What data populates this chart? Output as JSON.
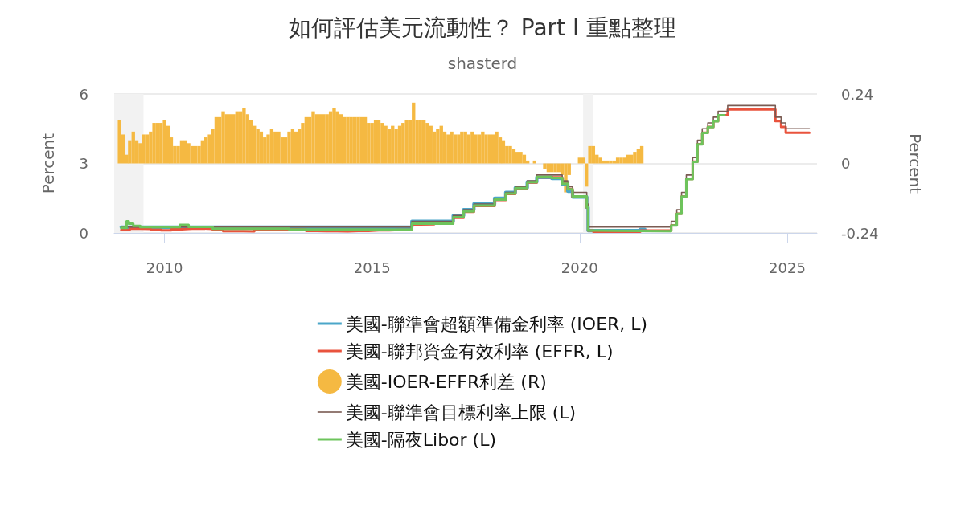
{
  "chart_data": {
    "type": "step",
    "title": "如何評估美元流動性？ Part I 重點整理",
    "subtitle": "shasterd",
    "ylabel": "Percent",
    "y2label": "Percent",
    "xlim": [
      "2008-10-15",
      "2025-09-20"
    ],
    "xticks": [
      "2010",
      "2015",
      "2020",
      "2025"
    ],
    "ylim": [
      0,
      6
    ],
    "yticks": [
      0,
      3,
      6
    ],
    "y2lim": [
      -0.24,
      0.24
    ],
    "y2ticks": [
      -0.24,
      0,
      0.24
    ],
    "grid": "y",
    "legend": "bottom",
    "bands": [
      {
        "axis": "x",
        "from": "2008-10-15",
        "to": "2009-06-30",
        "color": "#f2f2f2"
      },
      {
        "axis": "x",
        "from": "2020-02-01",
        "to": "2020-04-30",
        "color": "#f2f2f2"
      }
    ],
    "series": [
      {
        "name": "美國-聯準會超額準備金利率 (IOER, L)",
        "color": "#4ba6c9",
        "x": [
          "2008-12-16",
          "2015-12-17",
          "2016-12-15",
          "2017-03-16",
          "2017-06-15",
          "2017-12-14",
          "2018-03-22",
          "2018-06-14",
          "2018-09-27",
          "2018-12-20",
          "2019-05-02",
          "2019-08-01",
          "2019-09-19",
          "2019-10-31",
          "2020-03-04",
          "2020-03-16",
          "2021-06-17",
          "2021-07-28"
        ],
        "values": [
          0.25,
          0.5,
          0.75,
          1,
          1.25,
          1.5,
          1.75,
          1.95,
          2.2,
          2.4,
          2.35,
          2.1,
          1.8,
          1.55,
          1.1,
          0.1,
          0.15,
          0.15
        ]
      },
      {
        "name": "美國-聯邦資金有效利率 (EFFR, L)",
        "color": "#e9533d",
        "x": [
          "2008-12-16",
          "2009-03",
          "2009-06",
          "2009-09",
          "2009-12",
          "2010-03",
          "2010-06",
          "2010-09",
          "2010-12",
          "2011-03",
          "2011-06",
          "2011-09",
          "2011-12",
          "2012-03",
          "2012-06",
          "2012-09",
          "2012-12",
          "2013-03",
          "2013-06",
          "2013-09",
          "2013-12",
          "2014-03",
          "2014-06",
          "2014-09",
          "2014-12",
          "2015-03",
          "2015-06",
          "2015-09",
          "2015-12-17",
          "2016-03",
          "2016-07",
          "2016-12-15",
          "2017-03-16",
          "2017-06-15",
          "2017-12-14",
          "2018-03-22",
          "2018-06-14",
          "2018-09-27",
          "2018-12-20",
          "2019-08-01",
          "2019-09-19",
          "2019-10-31",
          "2020-03-04",
          "2020-03-16",
          "2020-05",
          "2021-06-17",
          "2022-03-17",
          "2022-05-05",
          "2022-06-16",
          "2022-07-28",
          "2022-09-22",
          "2022-11-03",
          "2022-12-15",
          "2023-02-02",
          "2023-03-23",
          "2023-05-04",
          "2023-07-27",
          "2024-09-19",
          "2024-11-08",
          "2024-12-19",
          "2025-07-15"
        ],
        "values": [
          0.13,
          0.18,
          0.17,
          0.14,
          0.11,
          0.16,
          0.18,
          0.19,
          0.17,
          0.13,
          0.08,
          0.08,
          0.07,
          0.12,
          0.16,
          0.14,
          0.16,
          0.14,
          0.09,
          0.08,
          0.08,
          0.07,
          0.09,
          0.09,
          0.11,
          0.11,
          0.13,
          0.13,
          0.36,
          0.37,
          0.4,
          0.65,
          0.91,
          1.16,
          1.42,
          1.68,
          1.91,
          2.18,
          2.4,
          2.13,
          1.9,
          1.55,
          1.1,
          0.1,
          0.05,
          0.1,
          0.33,
          0.83,
          1.58,
          2.33,
          3.08,
          3.83,
          4.33,
          4.58,
          4.83,
          5.08,
          5.33,
          4.83,
          4.58,
          4.33,
          4.33
        ]
      },
      {
        "name": "美國-IOER-EFFR利差 (R)",
        "color": "#f5b942",
        "type": "bar",
        "axis": "y2",
        "x": [
          "2008-12",
          "2009-01",
          "2009-02",
          "2009-03",
          "2009-04",
          "2009-05",
          "2009-06",
          "2009-07",
          "2009-08",
          "2009-09",
          "2009-10",
          "2009-11",
          "2009-12",
          "2010-01",
          "2010-02",
          "2010-03",
          "2010-04",
          "2010-05",
          "2010-06",
          "2010-07",
          "2010-08",
          "2010-09",
          "2010-10",
          "2010-11",
          "2010-12",
          "2011-01",
          "2011-02",
          "2011-03",
          "2011-04",
          "2011-05",
          "2011-06",
          "2011-07",
          "2011-08",
          "2011-09",
          "2011-10",
          "2011-11",
          "2011-12",
          "2012-01",
          "2012-02",
          "2012-03",
          "2012-04",
          "2012-05",
          "2012-06",
          "2012-07",
          "2012-08",
          "2012-09",
          "2012-10",
          "2012-11",
          "2012-12",
          "2013-01",
          "2013-02",
          "2013-03",
          "2013-04",
          "2013-05",
          "2013-06",
          "2013-07",
          "2013-08",
          "2013-09",
          "2013-10",
          "2013-11",
          "2013-12",
          "2014-01",
          "2014-02",
          "2014-03",
          "2014-04",
          "2014-05",
          "2014-06",
          "2014-07",
          "2014-08",
          "2014-09",
          "2014-10",
          "2014-11",
          "2014-12",
          "2015-01",
          "2015-02",
          "2015-03",
          "2015-04",
          "2015-05",
          "2015-06",
          "2015-07",
          "2015-08",
          "2015-09",
          "2015-10",
          "2015-11",
          "2015-12",
          "2016-01",
          "2016-02",
          "2016-03",
          "2016-04",
          "2016-05",
          "2016-06",
          "2016-07",
          "2016-08",
          "2016-09",
          "2016-10",
          "2016-11",
          "2016-12",
          "2017-01",
          "2017-02",
          "2017-03",
          "2017-04",
          "2017-05",
          "2017-06",
          "2017-07",
          "2017-08",
          "2017-09",
          "2017-10",
          "2017-11",
          "2017-12",
          "2018-01",
          "2018-02",
          "2018-03",
          "2018-04",
          "2018-05",
          "2018-06",
          "2018-07",
          "2018-08",
          "2018-09",
          "2018-10",
          "2018-11",
          "2018-12",
          "2019-01",
          "2019-02",
          "2019-03",
          "2019-04",
          "2019-05",
          "2019-06",
          "2019-07",
          "2019-08",
          "2019-09",
          "2019-10",
          "2019-11",
          "2019-12",
          "2020-01",
          "2020-02",
          "2020-03",
          "2020-04",
          "2020-05",
          "2020-06",
          "2020-07",
          "2020-08",
          "2020-09",
          "2020-10",
          "2020-11",
          "2020-12",
          "2021-01",
          "2021-02",
          "2021-03",
          "2021-04",
          "2021-05",
          "2021-06",
          "2021-07"
        ],
        "values": [
          0.15,
          0.1,
          0.03,
          0.08,
          0.11,
          0.08,
          0.07,
          0.1,
          0.1,
          0.11,
          0.14,
          0.14,
          0.14,
          0.15,
          0.13,
          0.09,
          0.06,
          0.06,
          0.08,
          0.08,
          0.07,
          0.06,
          0.06,
          0.06,
          0.08,
          0.09,
          0.1,
          0.12,
          0.16,
          0.16,
          0.18,
          0.17,
          0.17,
          0.17,
          0.18,
          0.18,
          0.19,
          0.17,
          0.15,
          0.13,
          0.12,
          0.11,
          0.09,
          0.1,
          0.12,
          0.11,
          0.11,
          0.09,
          0.09,
          0.11,
          0.12,
          0.11,
          0.12,
          0.14,
          0.16,
          0.16,
          0.18,
          0.17,
          0.17,
          0.17,
          0.17,
          0.18,
          0.19,
          0.18,
          0.17,
          0.16,
          0.16,
          0.16,
          0.16,
          0.16,
          0.16,
          0.16,
          0.14,
          0.14,
          0.15,
          0.15,
          0.14,
          0.13,
          0.12,
          0.13,
          0.12,
          0.13,
          0.14,
          0.15,
          0.15,
          0.21,
          0.15,
          0.15,
          0.15,
          0.14,
          0.13,
          0.11,
          0.12,
          0.13,
          0.11,
          0.1,
          0.11,
          0.1,
          0.1,
          0.11,
          0.11,
          0.1,
          0.11,
          0.1,
          0.1,
          0.11,
          0.1,
          0.1,
          0.1,
          0.11,
          0.09,
          0.08,
          0.06,
          0.06,
          0.05,
          0.04,
          0.04,
          0.03,
          0.01,
          0,
          0.01,
          0,
          0,
          -0.02,
          -0.03,
          -0.03,
          -0.03,
          -0.03,
          -0.04,
          -0.1,
          -0.04,
          0,
          0,
          0.02,
          0.02,
          -0.08,
          0.06,
          0.06,
          0.03,
          0.02,
          0.01,
          0.01,
          0.01,
          0.01,
          0.02,
          0.02,
          0.02,
          0.03,
          0.03,
          0.04,
          0.05,
          0.06
        ]
      },
      {
        "name": "美國-聯準會目標利率上限 (L)",
        "color": "#7a5b52",
        "x": [
          "2008-12-16",
          "2015-12-17",
          "2016-12-15",
          "2017-03-16",
          "2017-06-15",
          "2017-12-14",
          "2018-03-22",
          "2018-06-14",
          "2018-09-27",
          "2018-12-20",
          "2019-08-01",
          "2019-09-19",
          "2019-10-31",
          "2020-03-04",
          "2020-03-16",
          "2022-03-17",
          "2022-05-05",
          "2022-06-16",
          "2022-07-28",
          "2022-09-22",
          "2022-11-03",
          "2022-12-15",
          "2023-02-02",
          "2023-03-23",
          "2023-05-04",
          "2023-07-27",
          "2024-09-19",
          "2024-11-08",
          "2024-12-19",
          "2025-07-15"
        ],
        "values": [
          0.25,
          0.5,
          0.75,
          1,
          1.25,
          1.5,
          1.75,
          2,
          2.25,
          2.5,
          2.25,
          2,
          1.75,
          1.25,
          0.25,
          0.5,
          1,
          1.75,
          2.5,
          3.25,
          4,
          4.5,
          4.75,
          5,
          5.25,
          5.5,
          5,
          4.75,
          4.5,
          4.5
        ]
      },
      {
        "name": "美國-隔夜Libor (L)",
        "color": "#6dc45c",
        "x": [
          "2008-12-16",
          "2009-02",
          "2009-02-20",
          "2009-04",
          "2009-06",
          "2010-05-15",
          "2010-08",
          "2011-03",
          "2013-01",
          "2015-01",
          "2015-12-17",
          "2016-12-15",
          "2017-03-16",
          "2017-06-15",
          "2017-12-14",
          "2018-03-22",
          "2018-06-14",
          "2018-09-27",
          "2018-12-20",
          "2019-05",
          "2019-08-01",
          "2019-09-19",
          "2019-10-31",
          "2020-03-04",
          "2020-03-16",
          "2020-06",
          "2022-03-17",
          "2022-05-05",
          "2022-06-16",
          "2022-07-28",
          "2022-09-22",
          "2022-11-03",
          "2022-12-15",
          "2023-02-02",
          "2023-03-23",
          "2023-05-04",
          "2023-06-30"
        ],
        "values": [
          0.22,
          0.5,
          0.4,
          0.3,
          0.25,
          0.35,
          0.26,
          0.18,
          0.15,
          0.14,
          0.4,
          0.68,
          0.93,
          1.18,
          1.44,
          1.7,
          1.93,
          2.19,
          2.42,
          2.38,
          2.12,
          1.88,
          1.58,
          1.1,
          0.1,
          0.08,
          0.32,
          0.82,
          1.57,
          2.32,
          3.07,
          3.82,
          4.32,
          4.57,
          4.82,
          5.08,
          5.08
        ]
      }
    ]
  }
}
